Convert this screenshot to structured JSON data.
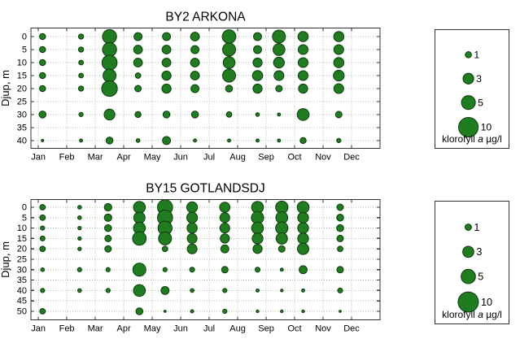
{
  "colors": {
    "bubble_fill": "#1f7d1f",
    "bubble_stroke": "#0d3b0d",
    "grid": "#b8b8b8",
    "axis": "#333333",
    "text": "#000000",
    "background": "#ffffff"
  },
  "legend": {
    "values": [
      1,
      3,
      5,
      10
    ],
    "caption_prefix": "klorofyll",
    "caption_italic": "a",
    "caption_suffix": "µg/l"
  },
  "chart_data": [
    {
      "type": "bubble",
      "title": "BY2 ARKONA",
      "xlabel": "",
      "ylabel": "Djup, m",
      "xticklabels": [
        "Jan",
        "Feb",
        "Mar",
        "Apr",
        "May",
        "Jun",
        "Jul",
        "Aug",
        "Sep",
        "Oct",
        "Nov",
        "Dec"
      ],
      "yticks": [
        0,
        5,
        10,
        15,
        20,
        25,
        30,
        35,
        40
      ],
      "xlim": [
        0.74,
        13
      ],
      "ylim": [
        -3.3,
        43
      ],
      "grid": "dotted",
      "units": "chlorophyll a, µg/l; x = month, y = depth (m)",
      "columns": [
        {
          "month": 1.15,
          "values": {
            "0": 0.9,
            "5": 0.9,
            "10": 0.9,
            "15": 0.9,
            "20": 0.9,
            "30": 1.2,
            "40": 0.15
          }
        },
        {
          "month": 2.5,
          "values": {
            "0": 0.65,
            "5": 0.65,
            "10": 0.55,
            "15": 0.55,
            "20": 0.65,
            "30": 0.45,
            "40": 0.25
          }
        },
        {
          "month": 3.5,
          "values": {
            "0": 4.9,
            "5": 4.9,
            "10": 5.7,
            "15": 4.2,
            "20": 6.1,
            "30": 2.9,
            "40": 1.2
          }
        },
        {
          "month": 4.5,
          "values": {
            "0": 1.6,
            "5": 1.9,
            "10": 1.9,
            "15": 0.75,
            "20": 1.05,
            "30": 0.9,
            "40": 0.35
          }
        },
        {
          "month": 5.5,
          "values": {
            "0": 1.6,
            "5": 1.9,
            "10": 1.9,
            "15": 2.1,
            "20": 2.1,
            "30": 1.2,
            "40": 1.6
          }
        },
        {
          "month": 6.5,
          "values": {
            "0": 1.9,
            "5": 1.6,
            "10": 1.9,
            "15": 1.9,
            "20": 1.6,
            "30": 1.2,
            "40": 0.25
          }
        },
        {
          "month": 7.7,
          "values": {
            "0": 4.6,
            "5": 4.2,
            "10": 3.5,
            "15": 4.2,
            "20": 1.2,
            "30": 0.75,
            "40": 0.25
          }
        },
        {
          "month": 8.7,
          "values": {
            "0": 1.6,
            "5": 1.6,
            "10": 2.1,
            "15": 2.6,
            "20": 2.1,
            "30": 0.35,
            "40": 0.25
          }
        },
        {
          "month": 9.45,
          "values": {
            "0": 4.2,
            "5": 3.5,
            "10": 2.9,
            "15": 2.4,
            "20": 1.05,
            "30": 0.25,
            "40": 0.25
          }
        },
        {
          "month": 10.3,
          "values": {
            "0": 2.6,
            "5": 2.4,
            "10": 2.4,
            "15": 2.4,
            "20": 2.1,
            "30": 3.5,
            "40": 0.9
          }
        },
        {
          "month": 11.55,
          "values": {
            "0": 2.6,
            "5": 2.4,
            "10": 2.6,
            "15": 2.9,
            "20": 2.4,
            "30": 1.05,
            "40": 0.45
          }
        }
      ]
    },
    {
      "type": "bubble",
      "title": "BY15 GOTLANDSDJ",
      "xlabel": "",
      "ylabel": "Djup, m",
      "xticklabels": [
        "Jan",
        "Feb",
        "Mar",
        "Apr",
        "May",
        "Jun",
        "Jul",
        "Aug",
        "Sep",
        "Oct",
        "Nov",
        "Dec"
      ],
      "yticks": [
        0,
        5,
        10,
        15,
        20,
        25,
        30,
        35,
        40,
        45,
        50
      ],
      "xlim": [
        0.74,
        13
      ],
      "ylim": [
        -3.7,
        54.1
      ],
      "grid": "dotted",
      "units": "chlorophyll a, µg/l; x = month, y = depth (m)",
      "columns": [
        {
          "month": 1.15,
          "values": {
            "0": 0.75,
            "5": 0.75,
            "10": 0.45,
            "15": 0.6,
            "20": 0.75,
            "30": 0.35,
            "40": 0.45,
            "50": 0.75
          }
        },
        {
          "month": 2.45,
          "values": {
            "0": 0.35,
            "5": 0.35,
            "10": 0.3,
            "15": 0.3,
            "20": 0.3,
            "30": 0.45,
            "40": 0.35
          }
        },
        {
          "month": 3.45,
          "values": {
            "0": 1.4,
            "5": 1.4,
            "10": 1.2,
            "15": 1.05,
            "20": 1.05,
            "30": 0.45,
            "40": 0.45
          }
        },
        {
          "month": 4.55,
          "values": {
            "0": 3.5,
            "5": 3.2,
            "10": 3.5,
            "15": 4.6,
            "30": 4.2,
            "40": 3.5,
            "50": 1.2
          }
        },
        {
          "month": 5.45,
          "values": {
            "0": 5.7,
            "5": 5.7,
            "10": 4.9,
            "15": 4.2,
            "20": 0.75,
            "30": 0.45,
            "40": 1.6,
            "50": 0.12
          }
        },
        {
          "month": 6.4,
          "values": {
            "0": 2.9,
            "5": 2.9,
            "10": 2.6,
            "15": 2.4,
            "20": 2.4,
            "30": 0.6,
            "40": 0.35,
            "50": 0.25
          }
        },
        {
          "month": 7.55,
          "values": {
            "0": 2.6,
            "5": 2.4,
            "10": 2.4,
            "15": 2.1,
            "20": 1.6,
            "30": 1.05,
            "40": 0.45,
            "50": 0.45
          }
        },
        {
          "month": 8.7,
          "values": {
            "0": 3.5,
            "5": 3.8,
            "10": 3.5,
            "15": 2.9,
            "20": 2.1,
            "30": 0.6,
            "40": 0.25,
            "50": 0.18
          }
        },
        {
          "month": 9.55,
          "values": {
            "0": 3.8,
            "5": 3.5,
            "10": 3.8,
            "15": 3.2,
            "20": 1.05,
            "30": 0.25,
            "40": 0.18,
            "50": 0.18
          }
        },
        {
          "month": 10.3,
          "values": {
            "0": 3.5,
            "5": 2.9,
            "10": 2.9,
            "15": 2.9,
            "20": 3.2,
            "30": 1.6,
            "40": 0.25,
            "50": 0.18
          }
        },
        {
          "month": 11.6,
          "values": {
            "0": 1.05,
            "5": 1.2,
            "10": 1.2,
            "15": 1.05,
            "20": 0.75,
            "30": 1.05,
            "40": 0.6,
            "50": 0.12
          }
        }
      ]
    }
  ]
}
